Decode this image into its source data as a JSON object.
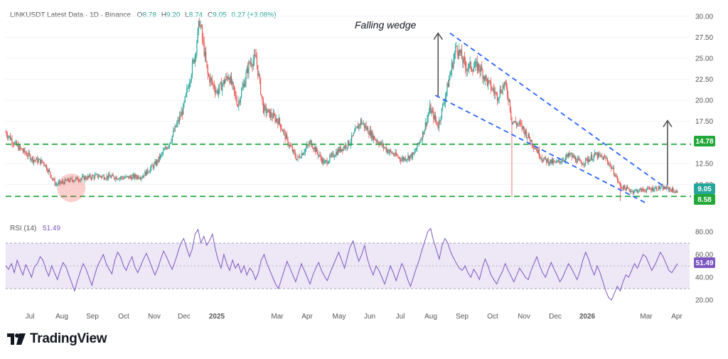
{
  "header": {
    "title": "LINKUSDT Latest Data · 1D · Binance",
    "o_label": "O",
    "o_value": "8.78",
    "h_label": "H",
    "h_value": "9.20",
    "l_label": "L",
    "l_value": "8.74",
    "c_label": "C",
    "c_value": "9.05",
    "change": "0.27 (+3.08%)"
  },
  "annotation": {
    "wedge_label": "Falling wedge"
  },
  "rsi_header": {
    "label": "RSI (14)",
    "value": "51.49"
  },
  "brand": {
    "name": "TradingView"
  },
  "colors": {
    "up": "#26a69a",
    "down": "#ef5350",
    "support": "#22a83a",
    "wedge": "#2962ff",
    "rsi": "#7e57c2",
    "rsi_band": "#ede7f6",
    "arrow": "#555555"
  },
  "chart_data": [
    {
      "type": "candlestick",
      "title": "LINKUSDT Latest Data · 1D · Binance",
      "y_axis_side": "right",
      "ylim": [
        7.5,
        30.5
      ],
      "y_ticks": [
        "30.00",
        "27.50",
        "25.00",
        "22.50",
        "20.00",
        "17.50",
        "15.00",
        "12.50",
        "10.00"
      ],
      "x_ticks": [
        "Jul",
        "Aug",
        "Sep",
        "Oct",
        "Nov",
        "Dec",
        "2025",
        "Mar",
        "Apr",
        "May",
        "Jun",
        "Jul",
        "Aug",
        "Sep",
        "Oct",
        "Nov",
        "Dec",
        "2026",
        "Mar",
        "Apr"
      ],
      "price_path": [
        {
          "day": 0,
          "price": 16.2
        },
        {
          "day": 12,
          "price": 14.6
        },
        {
          "day": 30,
          "price": 13.0
        },
        {
          "day": 42,
          "price": 12.6
        },
        {
          "day": 55,
          "price": 10.0
        },
        {
          "day": 70,
          "price": 10.5
        },
        {
          "day": 100,
          "price": 11.0
        },
        {
          "day": 130,
          "price": 10.8
        },
        {
          "day": 150,
          "price": 11.0
        },
        {
          "day": 165,
          "price": 12.5
        },
        {
          "day": 180,
          "price": 15.0
        },
        {
          "day": 195,
          "price": 19.0
        },
        {
          "day": 208,
          "price": 25.5
        },
        {
          "day": 213,
          "price": 29.5
        },
        {
          "day": 222,
          "price": 23.0
        },
        {
          "day": 232,
          "price": 21.0
        },
        {
          "day": 245,
          "price": 23.0
        },
        {
          "day": 255,
          "price": 19.5
        },
        {
          "day": 268,
          "price": 24.5
        },
        {
          "day": 275,
          "price": 25.0
        },
        {
          "day": 283,
          "price": 19.0
        },
        {
          "day": 300,
          "price": 17.5
        },
        {
          "day": 310,
          "price": 15.0
        },
        {
          "day": 320,
          "price": 13.0
        },
        {
          "day": 335,
          "price": 15.0
        },
        {
          "day": 350,
          "price": 12.5
        },
        {
          "day": 365,
          "price": 14.0
        },
        {
          "day": 378,
          "price": 15.0
        },
        {
          "day": 390,
          "price": 17.5
        },
        {
          "day": 405,
          "price": 15.5
        },
        {
          "day": 420,
          "price": 14.0
        },
        {
          "day": 435,
          "price": 13.0
        },
        {
          "day": 448,
          "price": 13.5
        },
        {
          "day": 458,
          "price": 16.0
        },
        {
          "day": 466,
          "price": 19.0
        },
        {
          "day": 475,
          "price": 17.0
        },
        {
          "day": 485,
          "price": 21.5
        },
        {
          "day": 495,
          "price": 26.5
        },
        {
          "day": 505,
          "price": 24.0
        },
        {
          "day": 520,
          "price": 24.0
        },
        {
          "day": 530,
          "price": 22.0
        },
        {
          "day": 540,
          "price": 20.5
        },
        {
          "day": 548,
          "price": 22.0
        },
        {
          "day": 553,
          "price": 20.0
        },
        {
          "day": 556,
          "price": 17.5
        },
        {
          "day": 566,
          "price": 17.0
        },
        {
          "day": 578,
          "price": 15.0
        },
        {
          "day": 590,
          "price": 13.0
        },
        {
          "day": 604,
          "price": 12.5
        },
        {
          "day": 620,
          "price": 13.5
        },
        {
          "day": 632,
          "price": 12.5
        },
        {
          "day": 648,
          "price": 13.5
        },
        {
          "day": 660,
          "price": 13.0
        },
        {
          "day": 668,
          "price": 11.5
        },
        {
          "day": 675,
          "price": 9.8
        },
        {
          "day": 688,
          "price": 9.2
        },
        {
          "day": 705,
          "price": 9.4
        },
        {
          "day": 718,
          "price": 9.6
        },
        {
          "day": 728,
          "price": 9.5
        },
        {
          "day": 738,
          "price": 9.05
        }
      ],
      "support_levels": [
        14.78,
        8.58
      ],
      "current_price": "9.05",
      "support_label": "14.78",
      "low_label": "8.58",
      "falling_wedge": {
        "upper": {
          "from": {
            "day": 488,
            "price": 28.0
          },
          "to": {
            "day": 725,
            "price": 9.6
          }
        },
        "lower": {
          "from": {
            "day": 472,
            "price": 20.6
          },
          "to": {
            "day": 705,
            "price": 7.7
          }
        }
      },
      "wedge_height_arrows": [
        {
          "day": 475,
          "from": 20.5,
          "to": 28.0
        },
        {
          "day": 727,
          "from": 9.9,
          "to": 17.6
        }
      ],
      "highlight_circle": {
        "day": 72,
        "price": 9.6
      }
    },
    {
      "type": "line",
      "title": "RSI (14)",
      "ylim": [
        15,
        85
      ],
      "y_ticks": [
        "80.00",
        "60.00",
        "40.00",
        "20.00"
      ],
      "band": [
        30,
        70
      ],
      "midline": 50,
      "current_value": "51.49",
      "values": [
        50,
        47,
        52,
        44,
        55,
        48,
        42,
        51,
        46,
        40,
        49,
        52,
        58,
        55,
        47,
        41,
        50,
        44,
        38,
        46,
        53,
        49,
        42,
        35,
        28,
        37,
        45,
        52,
        47,
        40,
        33,
        42,
        50,
        55,
        60,
        52,
        47,
        43,
        55,
        62,
        58,
        50,
        46,
        53,
        58,
        49,
        44,
        50,
        56,
        61,
        55,
        48,
        42,
        48,
        56,
        63,
        58,
        52,
        47,
        54,
        62,
        70,
        74,
        66,
        58,
        65,
        78,
        82,
        70,
        76,
        68,
        72,
        78,
        65,
        55,
        48,
        60,
        52,
        46,
        55,
        48,
        52,
        44,
        50,
        42,
        48,
        45,
        38,
        44,
        55,
        60,
        52,
        46,
        40,
        34,
        30,
        38,
        46,
        54,
        48,
        42,
        36,
        44,
        52,
        46,
        40,
        34,
        42,
        48,
        53,
        46,
        41,
        37,
        44,
        50,
        56,
        62,
        55,
        48,
        58,
        67,
        72,
        62,
        54,
        60,
        68,
        56,
        48,
        42,
        50,
        46,
        40,
        34,
        42,
        50,
        44,
        37,
        45,
        52,
        46,
        38,
        32,
        40,
        48,
        55,
        64,
        72,
        80,
        83,
        72,
        64,
        56,
        68,
        74,
        70,
        62,
        57,
        52,
        48,
        46,
        50,
        44,
        40,
        47,
        43,
        38,
        48,
        56,
        50,
        42,
        38,
        34,
        40,
        45,
        52,
        46,
        41,
        36,
        42,
        48,
        44,
        40,
        38,
        46,
        52,
        58,
        50,
        44,
        40,
        47,
        53,
        47,
        42,
        36,
        40,
        46,
        52,
        48,
        43,
        38,
        45,
        55,
        62,
        56,
        48,
        42,
        50,
        44,
        36,
        28,
        22,
        20,
        26,
        32,
        28,
        36,
        42,
        40,
        46,
        52,
        48,
        54,
        60,
        58,
        52,
        46,
        50,
        56,
        62,
        58,
        52,
        46,
        44,
        48,
        52
      ]
    }
  ]
}
